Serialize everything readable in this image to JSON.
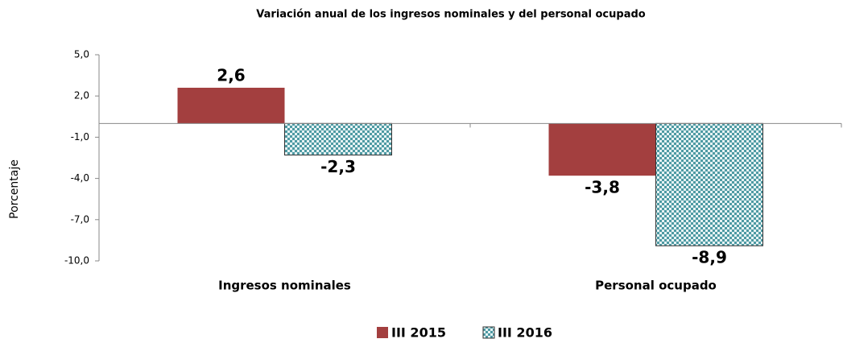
{
  "chart_data": {
    "type": "bar",
    "title": "Variación anual de los ingresos nominales y del personal ocupado",
    "y_label": "Porcentaje",
    "categories": [
      "Ingresos nominales",
      "Personal ocupado"
    ],
    "series": [
      {
        "name": "III 2015",
        "color": "#a33f3f",
        "values": [
          2.6,
          -3.8
        ],
        "value_labels": [
          "2,6",
          "-3,8"
        ]
      },
      {
        "name": "III 2016",
        "color": "#4e9aa3",
        "pattern": "checker",
        "values": [
          -2.3,
          -8.9
        ],
        "value_labels": [
          "-2,3",
          "-8,9"
        ]
      }
    ],
    "ylim": [
      -10,
      5
    ],
    "yticks": [
      {
        "value": -10,
        "label": "-10,0"
      },
      {
        "value": -7,
        "label": "-7,0"
      },
      {
        "value": -4,
        "label": "-4,0"
      },
      {
        "value": -1,
        "label": "-1,0"
      },
      {
        "value": 2,
        "label": "2,0"
      },
      {
        "value": 5,
        "label": "5,0"
      }
    ],
    "grid": false,
    "legend": "bottom"
  }
}
